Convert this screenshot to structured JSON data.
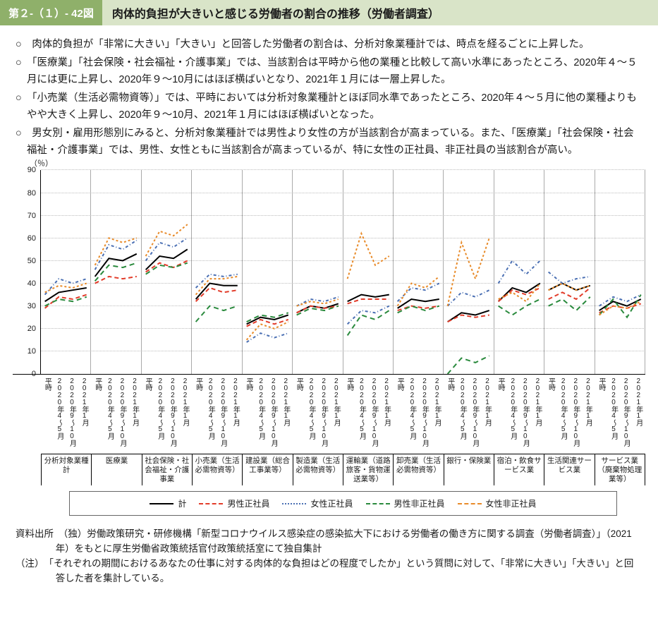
{
  "header": {
    "number": "第２-（１）- 42図",
    "title": "肉体的負担が大きいと感じる労働者の割合の推移（労働者調査）"
  },
  "bullets": [
    "○　肉体的負担が「非常に大きい」「大きい」と回答した労働者の割合は、分析対象業種計では、時点を経るごとに上昇した。",
    "○　「医療業」「社会保険・社会福祉・介護事業」では、当該割合は平時から他の業種と比較して高い水準にあったところ、2020年４〜５月には更に上昇し、2020年９〜10月にはほぼ横ばいとなり、2021年１月には一層上昇した。",
    "○　「小売業（生活必需物資等）」では、平時においては分析対象業種計とほぼ同水準であったところ、2020年４〜５月に他の業種よりもやや大きく上昇し、2020年９〜10月、2021年１月にはほぼ横ばいとなった。",
    "○　男女別・雇用形態別にみると、分析対象業種計では男性より女性の方が当該割合が高まっている。また、「医療業」「社会保険・社会福祉・介護事業」では、男性、女性ともに当該割合が高まっているが、特に女性の正社員、非正社員の当該割合が高い。"
  ],
  "chart": {
    "type": "line-small-multiples",
    "y_unit": "（％）",
    "ylim": [
      0,
      90
    ],
    "ytick_step": 10,
    "yticks": [
      0,
      10,
      20,
      30,
      40,
      50,
      60,
      70,
      80,
      90
    ],
    "x_labels": [
      "平時",
      "2020年4〜5月",
      "2020年9〜10月",
      "2021年1月"
    ],
    "grid_color": "#bcbcbc",
    "background_color": "#ffffff",
    "categories": [
      "分析対象業種計",
      "医療業",
      "社会保険・社会福祉・介護事業",
      "小売業（生活必需物資等）",
      "建設業（総合工事業等）",
      "製造業（生活必需物資等）",
      "運輸業（道路旅客・貨物運送業等）",
      "卸売業（生活必需物資等）",
      "銀行・保険業",
      "宿泊・飲食サービス業",
      "生活関連サービス業",
      "サービス業（廃棄物処理業等）"
    ],
    "series": [
      {
        "name": "計",
        "color": "#000000",
        "dash": "solid",
        "width": 2
      },
      {
        "name": "男性正社員",
        "color": "#e23c2a",
        "dash": "6,4",
        "width": 2
      },
      {
        "name": "女性正社員",
        "color": "#4a6fb3",
        "dash": "4,3,1,3",
        "width": 2
      },
      {
        "name": "男性非正社員",
        "color": "#2a8a3d",
        "dash": "7,5",
        "width": 2
      },
      {
        "name": "女性非正社員",
        "color": "#e88b2a",
        "dash": "3,3",
        "width": 2
      }
    ],
    "data": [
      {
        "計": [
          32,
          36,
          37,
          38
        ],
        "男性正社員": [
          29,
          34,
          33,
          35
        ],
        "女性正社員": [
          35,
          42,
          40,
          42
        ],
        "男性非正社員": [
          30,
          33,
          32,
          34
        ],
        "女性非正社員": [
          36,
          39,
          38,
          40
        ]
      },
      {
        "計": [
          43,
          51,
          50,
          53
        ],
        "男性正社員": [
          40,
          43,
          42,
          43
        ],
        "女性正社員": [
          46,
          57,
          55,
          59
        ],
        "男性非正社員": [
          41,
          48,
          47,
          49
        ],
        "女性非正社員": [
          48,
          60,
          58,
          60
        ]
      },
      {
        "計": [
          46,
          52,
          51,
          55
        ],
        "男性正社員": [
          45,
          49,
          47,
          50
        ],
        "女性正社員": [
          50,
          58,
          56,
          60
        ],
        "男性非正社員": [
          44,
          48,
          47,
          49
        ],
        "女性非正社員": [
          52,
          63,
          61,
          66
        ]
      },
      {
        "計": [
          33,
          40,
          39,
          39
        ],
        "男性正社員": [
          32,
          38,
          36,
          37
        ],
        "女性正社員": [
          38,
          44,
          43,
          44
        ],
        "男性非正社員": [
          23,
          30,
          28,
          30
        ],
        "女性非正社員": [
          35,
          42,
          42,
          43
        ]
      },
      {
        "計": [
          22,
          25,
          24,
          26
        ],
        "男性正社員": [
          21,
          24,
          22,
          24
        ],
        "女性正社員": [
          14,
          18,
          16,
          18
        ],
        "男性非正社員": [
          23,
          26,
          25,
          27
        ],
        "女性非正社員": [
          15,
          22,
          20,
          23
        ]
      },
      {
        "計": [
          27,
          30,
          29,
          31
        ],
        "男性正社員": [
          27,
          30,
          29,
          30
        ],
        "女性正社員": [
          30,
          33,
          32,
          34
        ],
        "男性非正社員": [
          26,
          29,
          28,
          30
        ],
        "女性非正社員": [
          30,
          32,
          31,
          33
        ]
      },
      {
        "計": [
          32,
          35,
          34,
          35
        ],
        "男性正社員": [
          31,
          33,
          33,
          33
        ],
        "女性正社員": [
          22,
          28,
          27,
          30
        ],
        "男性非正社員": [
          17,
          26,
          24,
          28
        ],
        "女性非正社員": [
          42,
          62,
          48,
          52
        ]
      },
      {
        "計": [
          29,
          33,
          32,
          33
        ],
        "男性正社員": [
          28,
          30,
          29,
          30
        ],
        "女性正社員": [
          32,
          38,
          37,
          40
        ],
        "男性非正社員": [
          27,
          30,
          28,
          30
        ],
        "女性非正社員": [
          30,
          40,
          38,
          43
        ]
      },
      {
        "計": [
          23,
          27,
          26,
          28
        ],
        "男性正社員": [
          23,
          26,
          25,
          26
        ],
        "女性正社員": [
          30,
          36,
          34,
          37
        ],
        "男性非正社員": [
          0,
          7,
          5,
          8
        ],
        "女性非正社員": [
          30,
          58,
          42,
          60
        ]
      },
      {
        "計": [
          32,
          38,
          36,
          40
        ],
        "男性正社員": [
          32,
          37,
          35,
          38
        ],
        "女性正社員": [
          40,
          50,
          44,
          50
        ],
        "男性非正社員": [
          30,
          26,
          30,
          33
        ],
        "女性非正社員": [
          33,
          36,
          32,
          40
        ]
      },
      {
        "計": [
          37,
          40,
          37,
          39
        ],
        "男性正社員": [
          33,
          36,
          33,
          38
        ],
        "女性正社員": [
          45,
          40,
          42,
          43
        ],
        "男性非正社員": [
          30,
          33,
          28,
          34
        ],
        "女性非正社員": [
          37,
          40,
          37,
          39
        ]
      },
      {
        "計": [
          28,
          32,
          30,
          33
        ],
        "男性正社員": [
          27,
          30,
          29,
          31
        ],
        "女性正社員": [
          30,
          34,
          32,
          35
        ],
        "男性非正社員": [
          26,
          33,
          25,
          35
        ],
        "女性非正社員": [
          26,
          30,
          29,
          32
        ]
      }
    ]
  },
  "source": "資料出所　（独）労働政策研究・研修機構「新型コロナウイルス感染症の感染拡大下における労働者の働き方に関する調査（労働者調査）」（2021年）をもとに厚生労働省政策統括官付政策統括室にて独自集計",
  "note": "（注）　「それぞれの期間におけるあなたの仕事に対する肉体的な負担はどの程度でしたか」という質問に対して、「非常に大きい」「大きい」と回答した者を集計している。"
}
